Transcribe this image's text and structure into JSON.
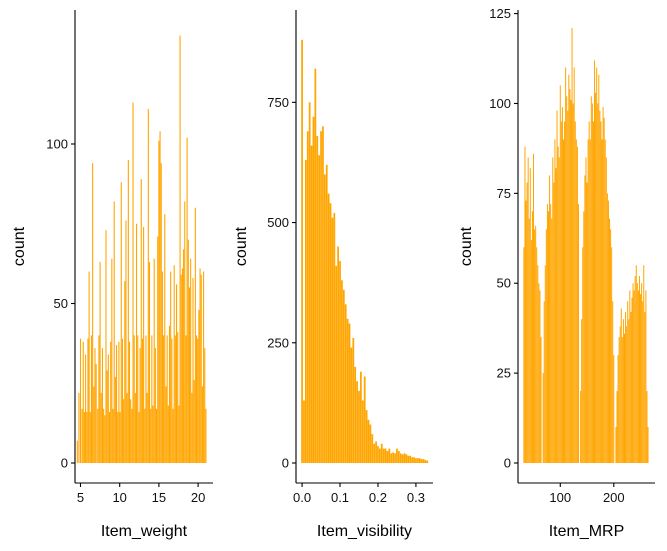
{
  "chart_data": [
    {
      "type": "histogram",
      "xlabel": "Item_weight",
      "ylabel": "count",
      "xlim": [
        4.3,
        21.9
      ],
      "ylim": [
        0,
        142
      ],
      "xticks": [
        5,
        10,
        15,
        20
      ],
      "yticks": [
        0,
        50,
        100
      ],
      "grid": false,
      "bar_color": "#FFA500",
      "bins": [
        [
          4.6,
          7
        ],
        [
          4.8,
          22
        ],
        [
          5.0,
          39
        ],
        [
          5.2,
          17
        ],
        [
          5.35,
          38
        ],
        [
          5.5,
          16
        ],
        [
          5.65,
          34
        ],
        [
          5.8,
          16
        ],
        [
          5.95,
          39
        ],
        [
          6.1,
          60
        ],
        [
          6.25,
          16
        ],
        [
          6.4,
          40
        ],
        [
          6.55,
          94
        ],
        [
          6.7,
          24
        ],
        [
          6.85,
          36
        ],
        [
          7.0,
          31
        ],
        [
          7.2,
          17
        ],
        [
          7.35,
          40
        ],
        [
          7.5,
          63
        ],
        [
          7.65,
          22
        ],
        [
          7.8,
          36
        ],
        [
          7.95,
          17
        ],
        [
          8.1,
          15
        ],
        [
          8.25,
          73
        ],
        [
          8.4,
          29
        ],
        [
          8.55,
          34
        ],
        [
          8.7,
          16
        ],
        [
          8.85,
          38
        ],
        [
          9.0,
          64
        ],
        [
          9.15,
          17
        ],
        [
          9.3,
          82
        ],
        [
          9.45,
          27
        ],
        [
          9.6,
          37
        ],
        [
          9.75,
          16
        ],
        [
          9.9,
          38
        ],
        [
          10.05,
          16
        ],
        [
          10.2,
          88
        ],
        [
          10.35,
          39
        ],
        [
          10.5,
          20
        ],
        [
          10.65,
          57
        ],
        [
          10.8,
          76
        ],
        [
          10.95,
          22
        ],
        [
          11.1,
          95
        ],
        [
          11.25,
          38
        ],
        [
          11.4,
          20
        ],
        [
          11.55,
          17
        ],
        [
          11.7,
          113
        ],
        [
          11.85,
          40
        ],
        [
          12.0,
          22
        ],
        [
          12.15,
          75
        ],
        [
          12.3,
          40
        ],
        [
          12.45,
          16
        ],
        [
          12.6,
          36
        ],
        [
          12.75,
          89
        ],
        [
          12.9,
          39
        ],
        [
          13.05,
          74
        ],
        [
          13.2,
          17
        ],
        [
          13.35,
          40
        ],
        [
          13.5,
          22
        ],
        [
          13.65,
          111
        ],
        [
          13.8,
          63
        ],
        [
          13.95,
          17
        ],
        [
          14.1,
          40
        ],
        [
          14.25,
          18
        ],
        [
          14.4,
          64
        ],
        [
          14.55,
          36
        ],
        [
          14.7,
          17
        ],
        [
          14.85,
          71
        ],
        [
          15.0,
          101
        ],
        [
          15.15,
          104
        ],
        [
          15.3,
          94
        ],
        [
          15.45,
          60
        ],
        [
          15.6,
          40
        ],
        [
          15.75,
          78
        ],
        [
          15.9,
          24
        ],
        [
          16.05,
          40
        ],
        [
          16.2,
          18
        ],
        [
          16.35,
          43
        ],
        [
          16.5,
          60
        ],
        [
          16.65,
          39
        ],
        [
          16.8,
          17
        ],
        [
          16.95,
          62
        ],
        [
          17.1,
          40
        ],
        [
          17.25,
          56
        ],
        [
          17.4,
          41
        ],
        [
          17.55,
          18
        ],
        [
          17.7,
          134
        ],
        [
          17.85,
          59
        ],
        [
          18.0,
          61
        ],
        [
          18.15,
          67
        ],
        [
          18.3,
          82
        ],
        [
          18.45,
          40
        ],
        [
          18.6,
          102
        ],
        [
          18.75,
          70
        ],
        [
          18.9,
          55
        ],
        [
          19.05,
          64
        ],
        [
          19.2,
          22
        ],
        [
          19.35,
          58
        ],
        [
          19.5,
          26
        ],
        [
          19.65,
          80
        ],
        [
          19.8,
          40
        ],
        [
          19.95,
          39
        ],
        [
          20.1,
          48
        ],
        [
          20.25,
          61
        ],
        [
          20.4,
          59
        ],
        [
          20.55,
          24
        ],
        [
          20.7,
          60
        ],
        [
          20.85,
          36
        ],
        [
          21.0,
          17
        ]
      ]
    },
    {
      "type": "histogram",
      "xlabel": "Item_visibility",
      "ylabel": "count",
      "xlim": [
        -0.016,
        0.345
      ],
      "ylim": [
        0,
        942
      ],
      "xticks": [
        "0.0",
        "0.1",
        "0.2",
        "0.3"
      ],
      "yticks": [
        0,
        250,
        500,
        750
      ],
      "grid": false,
      "bar_color": "#FFA500",
      "bins": [
        [
          0.0,
          880
        ],
        [
          0.005,
          130
        ],
        [
          0.01,
          630
        ],
        [
          0.015,
          690
        ],
        [
          0.02,
          750
        ],
        [
          0.025,
          660
        ],
        [
          0.03,
          720
        ],
        [
          0.035,
          820
        ],
        [
          0.04,
          680
        ],
        [
          0.045,
          640
        ],
        [
          0.05,
          690
        ],
        [
          0.055,
          700
        ],
        [
          0.06,
          600
        ],
        [
          0.065,
          620
        ],
        [
          0.07,
          560
        ],
        [
          0.075,
          540
        ],
        [
          0.08,
          510
        ],
        [
          0.085,
          520
        ],
        [
          0.09,
          410
        ],
        [
          0.095,
          450
        ],
        [
          0.1,
          420
        ],
        [
          0.105,
          380
        ],
        [
          0.11,
          360
        ],
        [
          0.115,
          330
        ],
        [
          0.12,
          300
        ],
        [
          0.125,
          290
        ],
        [
          0.13,
          240
        ],
        [
          0.135,
          260
        ],
        [
          0.14,
          200
        ],
        [
          0.145,
          170
        ],
        [
          0.15,
          150
        ],
        [
          0.155,
          190
        ],
        [
          0.16,
          130
        ],
        [
          0.165,
          180
        ],
        [
          0.17,
          110
        ],
        [
          0.175,
          90
        ],
        [
          0.18,
          80
        ],
        [
          0.185,
          60
        ],
        [
          0.19,
          40
        ],
        [
          0.195,
          45
        ],
        [
          0.2,
          35
        ],
        [
          0.205,
          30
        ],
        [
          0.21,
          40
        ],
        [
          0.215,
          30
        ],
        [
          0.22,
          30
        ],
        [
          0.225,
          25
        ],
        [
          0.23,
          30
        ],
        [
          0.235,
          20
        ],
        [
          0.24,
          22
        ],
        [
          0.245,
          20
        ],
        [
          0.25,
          30
        ],
        [
          0.255,
          25
        ],
        [
          0.26,
          20
        ],
        [
          0.265,
          18
        ],
        [
          0.27,
          20
        ],
        [
          0.275,
          18
        ],
        [
          0.28,
          15
        ],
        [
          0.285,
          15
        ],
        [
          0.29,
          12
        ],
        [
          0.295,
          12
        ],
        [
          0.3,
          10
        ],
        [
          0.305,
          10
        ],
        [
          0.31,
          10
        ],
        [
          0.315,
          8
        ],
        [
          0.32,
          8
        ],
        [
          0.325,
          6
        ],
        [
          0.33,
          5
        ]
      ]
    },
    {
      "type": "histogram",
      "xlabel": "Item_MRP",
      "ylabel": "count",
      "xlim": [
        21,
        277
      ],
      "ylim": [
        0,
        126
      ],
      "xticks": [
        100,
        200
      ],
      "yticks": [
        0,
        25,
        50,
        75,
        100,
        125
      ],
      "grid": false,
      "bar_color": "#FFA500",
      "bins": [
        [
          32,
          60
        ],
        [
          34,
          88
        ],
        [
          36,
          73
        ],
        [
          38,
          78
        ],
        [
          40,
          85
        ],
        [
          42,
          68
        ],
        [
          44,
          82
        ],
        [
          46,
          62
        ],
        [
          48,
          70
        ],
        [
          50,
          86
        ],
        [
          52,
          65
        ],
        [
          54,
          66
        ],
        [
          56,
          60
        ],
        [
          58,
          55
        ],
        [
          60,
          50
        ],
        [
          62,
          48
        ],
        [
          64,
          35
        ],
        [
          68,
          25
        ],
        [
          70,
          45
        ],
        [
          72,
          55
        ],
        [
          74,
          65
        ],
        [
          76,
          72
        ],
        [
          78,
          70
        ],
        [
          80,
          80
        ],
        [
          82,
          72
        ],
        [
          84,
          68
        ],
        [
          86,
          85
        ],
        [
          88,
          78
        ],
        [
          90,
          90
        ],
        [
          92,
          82
        ],
        [
          94,
          98
        ],
        [
          96,
          88
        ],
        [
          98,
          85
        ],
        [
          100,
          105
        ],
        [
          102,
          95
        ],
        [
          104,
          99
        ],
        [
          106,
          90
        ],
        [
          108,
          95
        ],
        [
          110,
          110
        ],
        [
          112,
          102
        ],
        [
          114,
          98
        ],
        [
          116,
          108
        ],
        [
          118,
          104
        ],
        [
          120,
          101
        ],
        [
          122,
          121
        ],
        [
          124,
          100
        ],
        [
          126,
          110
        ],
        [
          128,
          95
        ],
        [
          130,
          90
        ],
        [
          132,
          88
        ],
        [
          134,
          72
        ],
        [
          138,
          20
        ],
        [
          140,
          40
        ],
        [
          142,
          60
        ],
        [
          144,
          70
        ],
        [
          146,
          80
        ],
        [
          148,
          85
        ],
        [
          150,
          78
        ],
        [
          152,
          90
        ],
        [
          154,
          95
        ],
        [
          156,
          90
        ],
        [
          158,
          102
        ],
        [
          160,
          100
        ],
        [
          162,
          95
        ],
        [
          164,
          112
        ],
        [
          166,
          103
        ],
        [
          168,
          110
        ],
        [
          170,
          100
        ],
        [
          172,
          108
        ],
        [
          174,
          98
        ],
        [
          176,
          95
        ],
        [
          178,
          90
        ],
        [
          180,
          99
        ],
        [
          182,
          96
        ],
        [
          184,
          90
        ],
        [
          186,
          85
        ],
        [
          188,
          75
        ],
        [
          190,
          73
        ],
        [
          192,
          68
        ],
        [
          194,
          65
        ],
        [
          196,
          60
        ],
        [
          198,
          45
        ],
        [
          200,
          30
        ],
        [
          204,
          10
        ],
        [
          206,
          20
        ],
        [
          208,
          30
        ],
        [
          210,
          35
        ],
        [
          212,
          38
        ],
        [
          214,
          43
        ],
        [
          216,
          35
        ],
        [
          218,
          40
        ],
        [
          220,
          36
        ],
        [
          222,
          42
        ],
        [
          224,
          38
        ],
        [
          226,
          45
        ],
        [
          228,
          40
        ],
        [
          230,
          48
        ],
        [
          232,
          42
        ],
        [
          234,
          46
        ],
        [
          236,
          50
        ],
        [
          238,
          48
        ],
        [
          240,
          52
        ],
        [
          242,
          55
        ],
        [
          244,
          50
        ],
        [
          246,
          48
        ],
        [
          248,
          52
        ],
        [
          250,
          47
        ],
        [
          252,
          50
        ],
        [
          254,
          45
        ],
        [
          256,
          55
        ],
        [
          258,
          42
        ],
        [
          260,
          48
        ],
        [
          262,
          20
        ],
        [
          264,
          10
        ]
      ]
    }
  ]
}
